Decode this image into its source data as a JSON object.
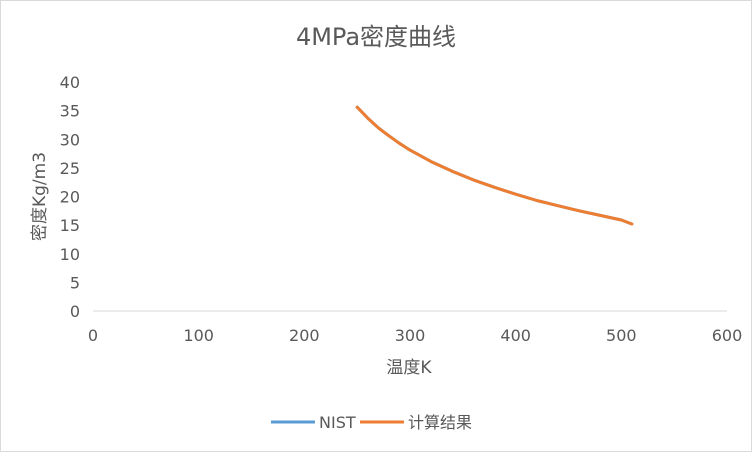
{
  "chart_data": {
    "type": "line",
    "title": "4MPa密度曲线",
    "xlabel": "温度K",
    "ylabel": "密度Kg/m3",
    "xlim": [
      0,
      600
    ],
    "ylim": [
      0,
      40
    ],
    "xticks": [
      0,
      100,
      200,
      300,
      400,
      500,
      600
    ],
    "yticks": [
      0,
      5,
      10,
      15,
      20,
      25,
      30,
      35,
      40
    ],
    "grid": false,
    "legend": "bottom",
    "series": [
      {
        "name": "NIST",
        "color": "#5b9bd5",
        "x": [
          250,
          260,
          270,
          280,
          290,
          300,
          320,
          340,
          360,
          380,
          400,
          420,
          440,
          460,
          480,
          500,
          510
        ],
        "y": [
          35.6,
          33.7,
          32.0,
          30.6,
          29.3,
          28.1,
          26.1,
          24.4,
          22.9,
          21.6,
          20.4,
          19.3,
          18.4,
          17.5,
          16.7,
          15.9,
          15.2
        ]
      },
      {
        "name": "计算结果",
        "color": "#ed7d31",
        "x": [
          250,
          260,
          270,
          280,
          290,
          300,
          320,
          340,
          360,
          380,
          400,
          420,
          440,
          460,
          480,
          500,
          510
        ],
        "y": [
          35.6,
          33.7,
          32.0,
          30.6,
          29.3,
          28.1,
          26.1,
          24.4,
          22.9,
          21.6,
          20.4,
          19.3,
          18.4,
          17.5,
          16.7,
          15.9,
          15.2
        ]
      }
    ]
  }
}
